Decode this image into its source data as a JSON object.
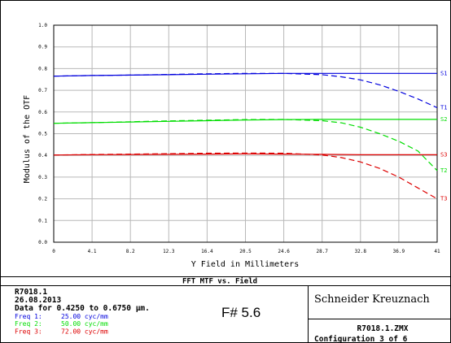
{
  "chart_data": {
    "type": "line",
    "title": "FFT MTF vs. Field",
    "xlabel": "Y Field in Millimeters",
    "ylabel": "Modulus of the OTF",
    "xlim": [
      0,
      41
    ],
    "ylim": [
      0,
      1.0
    ],
    "x_ticks": [
      "0",
      "4.1",
      "8.2",
      "12.3",
      "16.4",
      "20.5",
      "24.6",
      "28.7",
      "32.8",
      "36.9",
      "41"
    ],
    "y_ticks": [
      "0.0",
      "0.1",
      "0.2",
      "0.3",
      "0.4",
      "0.5",
      "0.6",
      "0.7",
      "0.8",
      "0.9",
      "1.0"
    ],
    "grid": true,
    "legend": "right-edge labels",
    "x": [
      0,
      4.1,
      8.2,
      12.3,
      16.4,
      20.5,
      24.6,
      28.7,
      30.75,
      32.8,
      34.85,
      36.9,
      38.95,
      41
    ],
    "series": [
      {
        "name": "S1",
        "color": "#0000dd",
        "dash": false,
        "values": [
          0.765,
          0.768,
          0.77,
          0.772,
          0.774,
          0.776,
          0.778,
          0.778,
          0.778,
          0.778,
          0.778,
          0.778,
          0.778,
          0.778
        ]
      },
      {
        "name": "T1",
        "color": "#0000dd",
        "dash": true,
        "values": [
          0.765,
          0.768,
          0.77,
          0.773,
          0.776,
          0.778,
          0.778,
          0.772,
          0.762,
          0.748,
          0.725,
          0.695,
          0.66,
          0.62
        ]
      },
      {
        "name": "S2",
        "color": "#00dd00",
        "dash": false,
        "values": [
          0.548,
          0.551,
          0.554,
          0.557,
          0.56,
          0.563,
          0.565,
          0.566,
          0.566,
          0.566,
          0.566,
          0.566,
          0.566,
          0.566
        ]
      },
      {
        "name": "T2",
        "color": "#00dd00",
        "dash": true,
        "values": [
          0.548,
          0.551,
          0.555,
          0.559,
          0.562,
          0.565,
          0.566,
          0.56,
          0.55,
          0.53,
          0.5,
          0.465,
          0.42,
          0.33
        ]
      },
      {
        "name": "S3",
        "color": "#dd0000",
        "dash": false,
        "values": [
          0.402,
          0.403,
          0.404,
          0.405,
          0.406,
          0.407,
          0.406,
          0.405,
          0.404,
          0.403,
          0.403,
          0.403,
          0.403,
          0.403
        ]
      },
      {
        "name": "T3",
        "color": "#dd0000",
        "dash": true,
        "values": [
          0.402,
          0.404,
          0.406,
          0.408,
          0.41,
          0.411,
          0.41,
          0.402,
          0.39,
          0.37,
          0.34,
          0.3,
          0.25,
          0.2
        ]
      }
    ]
  },
  "info": {
    "file_code": "R7018.1",
    "date": "26.08.2013",
    "wavelength": "Data for 0.4250 to 0.6750 µm.",
    "freqs": [
      {
        "label": "Freq 1:",
        "value": "25.00 cyc/mm",
        "color": "#0000dd"
      },
      {
        "label": "Freq 2:",
        "value": "50.00 cyc/mm",
        "color": "#00dd00"
      },
      {
        "label": "Freq 3:",
        "value": "72.00 cyc/mm",
        "color": "#dd0000"
      }
    ],
    "fnumber": "F# 5.6",
    "company": "Schneider Kreuznach",
    "zmx_file": "R7018.1.ZMX",
    "config": "Configuration 3 of 6"
  }
}
